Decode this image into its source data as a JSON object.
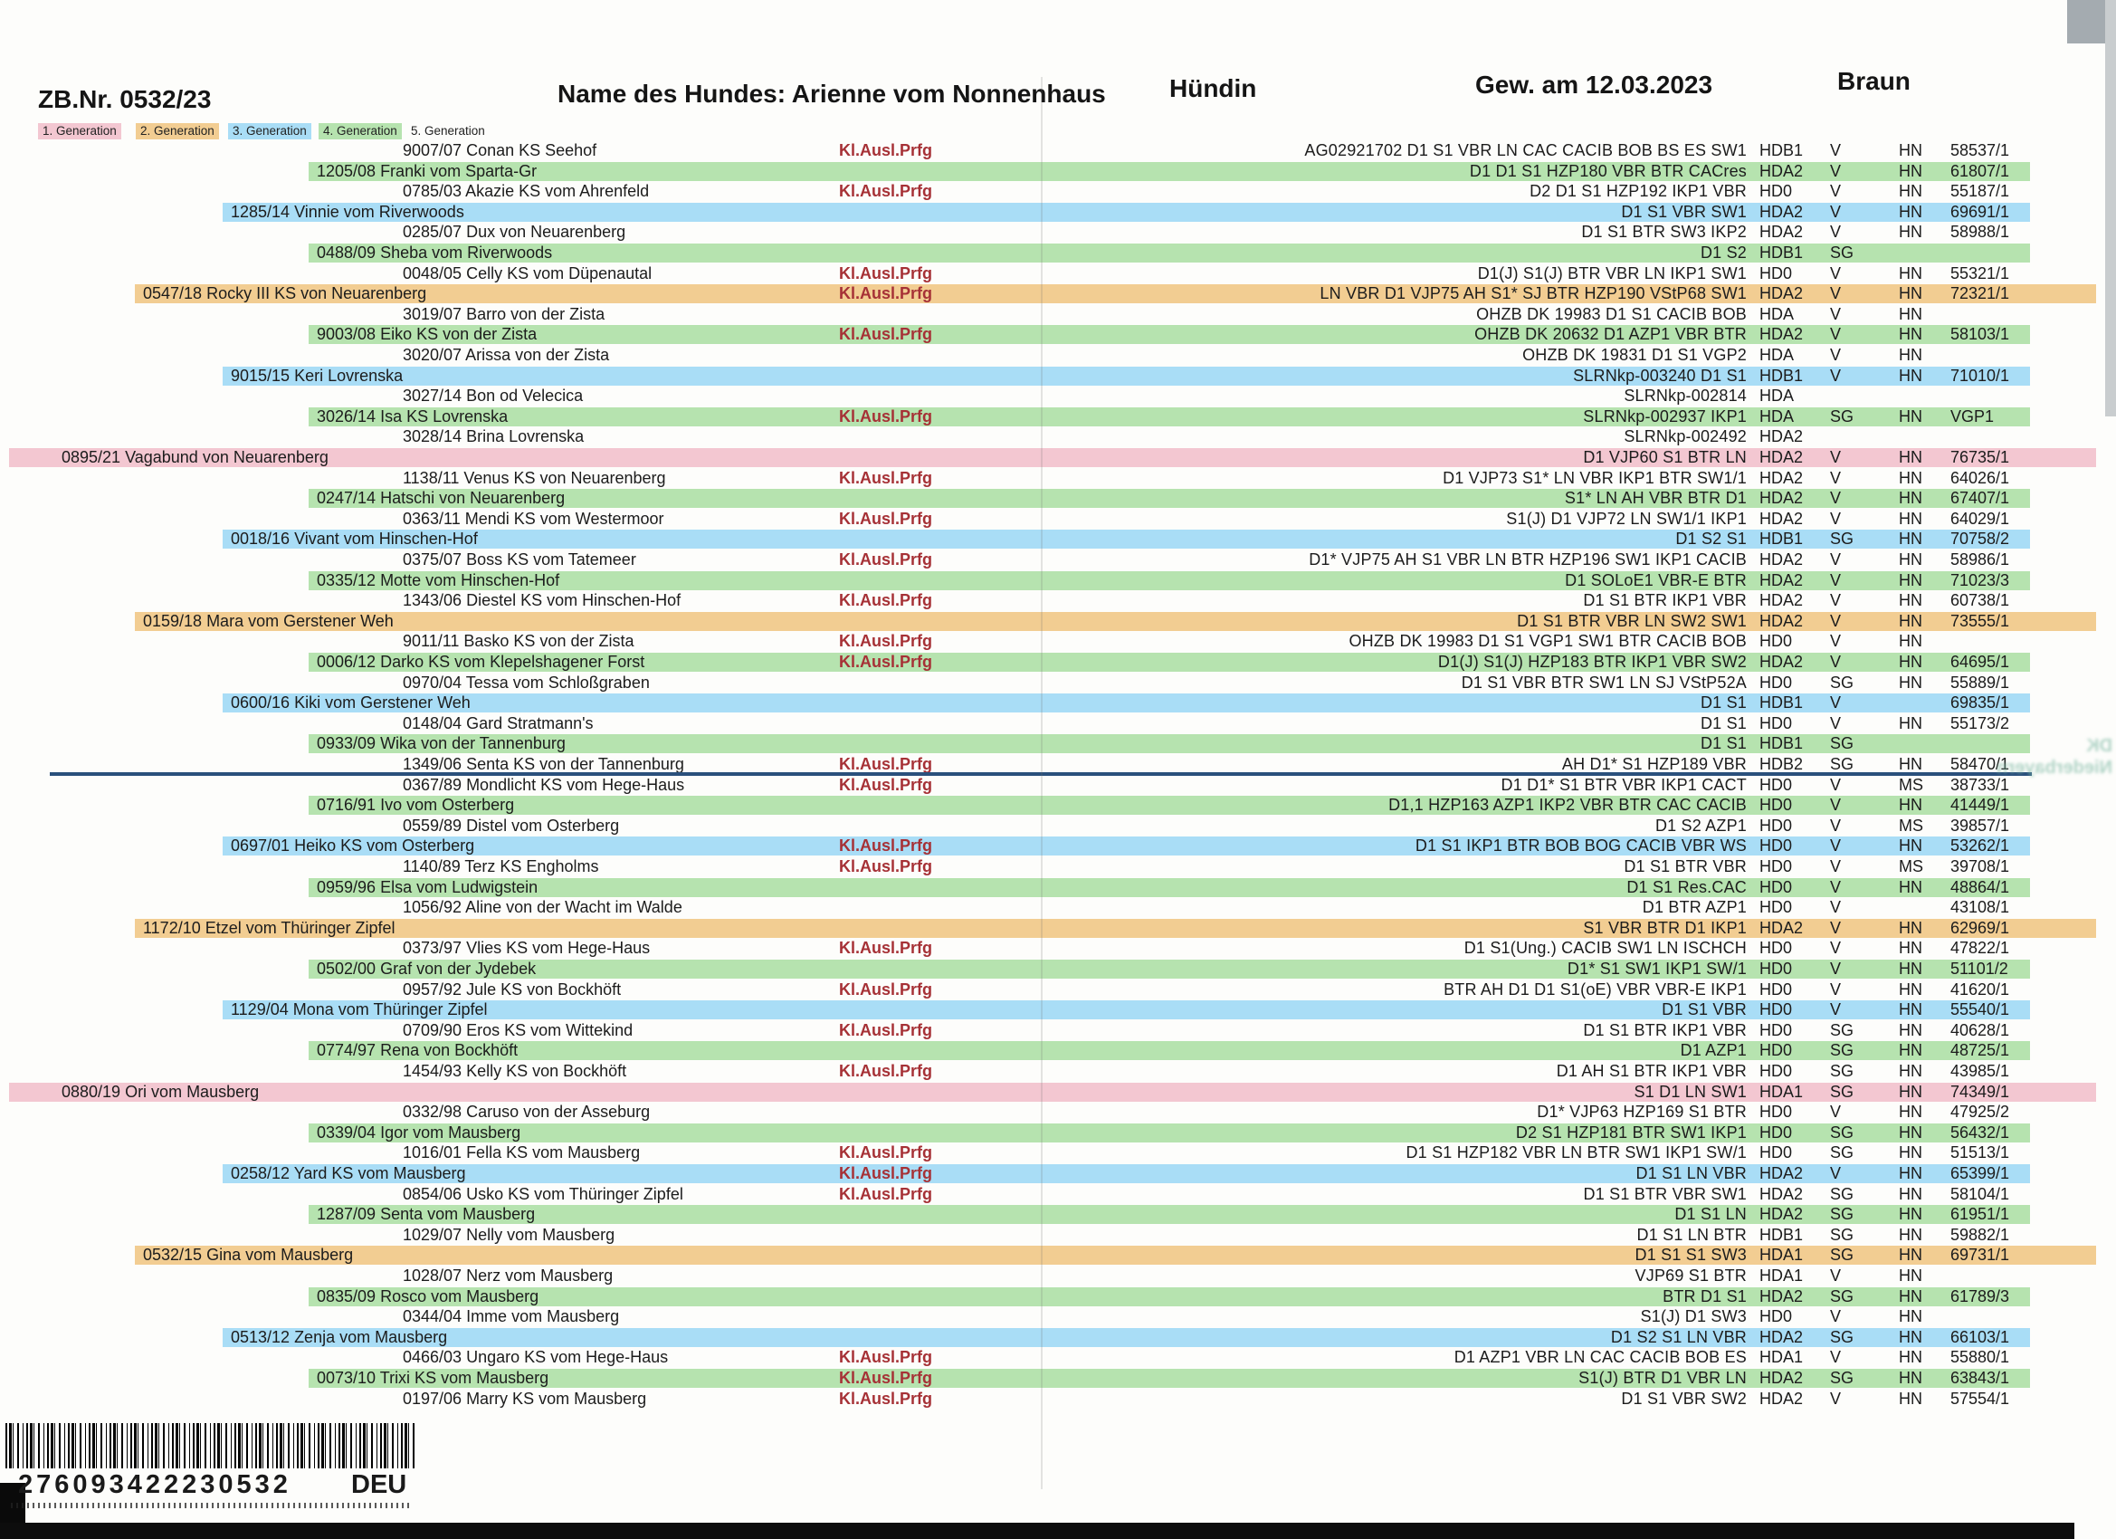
{
  "header": {
    "zb_nr": "ZB.Nr. 0532/23",
    "dog_name": "Name des Hundes: Arienne vom Nonnenhaus",
    "sex": "Hündin",
    "birth": "Gew. am 12.03.2023",
    "coat_color": "Braun"
  },
  "legend": {
    "items": [
      {
        "label": "1. Generation",
        "color": "#f3c7d1"
      },
      {
        "label": "2. Generation",
        "color": "#f2cd92"
      },
      {
        "label": "3. Generation",
        "color": "#a9ddf6"
      },
      {
        "label": "4. Generation",
        "color": "#b6e3af"
      },
      {
        "label": "5. Generation",
        "color": ""
      }
    ]
  },
  "labels": {
    "kl_ausl": "Kl.Ausl.Prfg"
  },
  "generation_colors": {
    "1": "#f3c7d1",
    "2": "#f2cd92",
    "3": "#a9ddf6",
    "4": "#b6e3af"
  },
  "divider_after_row": 31,
  "rows": [
    {
      "gen": 5,
      "name": "9007/07 Conan KS Seehof",
      "kl": true,
      "titles": "AG02921702 D1 S1 VBR LN CAC CACIB BOB BS ES SW1",
      "hd": "HDB1",
      "rating": "V",
      "org": "HN",
      "num": "58537/1"
    },
    {
      "gen": 4,
      "name": "1205/08 Franki vom Sparta-Gr",
      "kl": false,
      "titles": "D1 D1 S1 HZP180 VBR BTR CACres",
      "hd": "HDA2",
      "rating": "V",
      "org": "HN",
      "num": "61807/1"
    },
    {
      "gen": 5,
      "name": "0785/03 Akazie KS vom Ahrenfeld",
      "kl": true,
      "titles": "D2 D1 S1 HZP192 IKP1 VBR",
      "hd": "HD0",
      "rating": "V",
      "org": "HN",
      "num": "55187/1"
    },
    {
      "gen": 3,
      "name": "1285/14 Vinnie vom Riverwoods",
      "kl": false,
      "titles": "D1 S1 VBR SW1",
      "hd": "HDA2",
      "rating": "V",
      "org": "HN",
      "num": "69691/1"
    },
    {
      "gen": 5,
      "name": "0285/07 Dux von Neuarenberg",
      "kl": false,
      "titles": "D1 S1 BTR SW3 IKP2",
      "hd": "HDA2",
      "rating": "V",
      "org": "HN",
      "num": "58988/1"
    },
    {
      "gen": 4,
      "name": "0488/09 Sheba vom Riverwoods",
      "kl": false,
      "titles": "D1 S2",
      "hd": "HDB1",
      "rating": "SG",
      "org": "",
      "num": ""
    },
    {
      "gen": 5,
      "name": "0048/05 Celly KS vom Düpenautal",
      "kl": true,
      "titles": "D1(J) S1(J) BTR VBR LN IKP1 SW1",
      "hd": "HD0",
      "rating": "V",
      "org": "HN",
      "num": "55321/1"
    },
    {
      "gen": 2,
      "name": "0547/18 Rocky III KS von Neuarenberg",
      "kl": true,
      "titles": "LN VBR D1 VJP75 AH S1* SJ BTR HZP190 VStP68 SW1",
      "hd": "HDA2",
      "rating": "V",
      "org": "HN",
      "num": "72321/1"
    },
    {
      "gen": 5,
      "name": "3019/07 Barro von der Zista",
      "kl": false,
      "titles": "OHZB DK 19983 D1 S1 CACIB BOB",
      "hd": "HDA",
      "rating": "V",
      "org": "HN",
      "num": ""
    },
    {
      "gen": 4,
      "name": "9003/08 Eiko KS von der Zista",
      "kl": true,
      "titles": "OHZB DK 20632 D1 AZP1 VBR BTR",
      "hd": "HDA2",
      "rating": "V",
      "org": "HN",
      "num": "58103/1"
    },
    {
      "gen": 5,
      "name": "3020/07 Arissa von der Zista",
      "kl": false,
      "titles": "OHZB DK 19831 D1 S1 VGP2",
      "hd": "HDA",
      "rating": "V",
      "org": "HN",
      "num": ""
    },
    {
      "gen": 3,
      "name": "9015/15 Keri Lovrenska",
      "kl": false,
      "titles": "SLRNkp-003240 D1 S1",
      "hd": "HDB1",
      "rating": "V",
      "org": "HN",
      "num": "71010/1"
    },
    {
      "gen": 5,
      "name": "3027/14 Bon od Velecica",
      "kl": false,
      "titles": "SLRNkp-002814",
      "hd": "HDA",
      "rating": "",
      "org": "",
      "num": ""
    },
    {
      "gen": 4,
      "name": "3026/14 Isa KS Lovrenska",
      "kl": true,
      "titles": "SLRNkp-002937 IKP1",
      "hd": "HDA",
      "rating": "SG",
      "org": "HN",
      "num": "VGP1"
    },
    {
      "gen": 5,
      "name": "3028/14 Brina Lovrenska",
      "kl": false,
      "titles": "SLRNkp-002492",
      "hd": "HDA2",
      "rating": "",
      "org": "",
      "num": ""
    },
    {
      "gen": 1,
      "name": "0895/21 Vagabund von Neuarenberg",
      "kl": false,
      "titles": "D1 VJP60 S1 BTR LN",
      "hd": "HDA2",
      "rating": "V",
      "org": "HN",
      "num": "76735/1"
    },
    {
      "gen": 5,
      "name": "1138/11 Venus KS von Neuarenberg",
      "kl": true,
      "titles": "D1 VJP73 S1* LN VBR IKP1 BTR SW1/1",
      "hd": "HDA2",
      "rating": "V",
      "org": "HN",
      "num": "64026/1"
    },
    {
      "gen": 4,
      "name": "0247/14 Hatschi von Neuarenberg",
      "kl": false,
      "titles": "S1* LN AH VBR BTR D1",
      "hd": "HDA2",
      "rating": "V",
      "org": "HN",
      "num": "67407/1"
    },
    {
      "gen": 5,
      "name": "0363/11 Mendi KS vom Westermoor",
      "kl": true,
      "titles": "S1(J) D1 VJP72 LN SW1/1 IKP1",
      "hd": "HDA2",
      "rating": "V",
      "org": "HN",
      "num": "64029/1"
    },
    {
      "gen": 3,
      "name": "0018/16 Vivant vom Hinschen-Hof",
      "kl": false,
      "titles": "D1 S2 S1",
      "hd": "HDB1",
      "rating": "SG",
      "org": "HN",
      "num": "70758/2"
    },
    {
      "gen": 5,
      "name": "0375/07 Boss KS vom Tatemeer",
      "kl": true,
      "titles": "D1* VJP75 AH S1 VBR LN BTR HZP196 SW1 IKP1 CACIB",
      "hd": "HDA2",
      "rating": "V",
      "org": "HN",
      "num": "58986/1"
    },
    {
      "gen": 4,
      "name": "0335/12 Motte vom Hinschen-Hof",
      "kl": false,
      "titles": "D1 SOLoE1 VBR-E BTR",
      "hd": "HDA2",
      "rating": "V",
      "org": "HN",
      "num": "71023/3"
    },
    {
      "gen": 5,
      "name": "1343/06 Diestel KS vom Hinschen-Hof",
      "kl": true,
      "titles": "D1 S1 BTR IKP1 VBR",
      "hd": "HDA2",
      "rating": "V",
      "org": "HN",
      "num": "60738/1"
    },
    {
      "gen": 2,
      "name": "0159/18 Mara vom Gerstener Weh",
      "kl": false,
      "titles": "D1 S1 BTR VBR LN SW2 SW1",
      "hd": "HDA2",
      "rating": "V",
      "org": "HN",
      "num": "73555/1"
    },
    {
      "gen": 5,
      "name": "9011/11 Basko KS von der Zista",
      "kl": true,
      "titles": "OHZB DK 19983 D1 S1 VGP1 SW1 BTR CACIB BOB",
      "hd": "HD0",
      "rating": "V",
      "org": "HN",
      "num": ""
    },
    {
      "gen": 4,
      "name": "0006/12 Darko KS vom Klepelshagener Forst",
      "kl": true,
      "titles": "D1(J) S1(J) HZP183 BTR IKP1 VBR SW2",
      "hd": "HDA2",
      "rating": "V",
      "org": "HN",
      "num": "64695/1"
    },
    {
      "gen": 5,
      "name": "0970/04 Tessa vom Schloßgraben",
      "kl": false,
      "titles": "D1 S1 VBR BTR SW1 LN SJ VStP52A",
      "hd": "HD0",
      "rating": "SG",
      "org": "HN",
      "num": "55889/1"
    },
    {
      "gen": 3,
      "name": "0600/16 Kiki vom Gerstener Weh",
      "kl": false,
      "titles": "D1 S1",
      "hd": "HDB1",
      "rating": "V",
      "org": "",
      "num": "69835/1"
    },
    {
      "gen": 5,
      "name": "0148/04 Gard Stratmann's",
      "kl": false,
      "titles": "D1 S1",
      "hd": "HD0",
      "rating": "V",
      "org": "HN",
      "num": "55173/2"
    },
    {
      "gen": 4,
      "name": "0933/09 Wika von der Tannenburg",
      "kl": false,
      "titles": "D1 S1",
      "hd": "HDB1",
      "rating": "SG",
      "org": "",
      "num": ""
    },
    {
      "gen": 5,
      "name": "1349/06 Senta KS von der Tannenburg",
      "kl": true,
      "titles": "AH D1* S1 HZP189 VBR",
      "hd": "HDB2",
      "rating": "SG",
      "org": "HN",
      "num": "58470/1"
    },
    {
      "gen": 5,
      "name": "0367/89 Mondlicht KS vom Hege-Haus",
      "kl": true,
      "titles": "D1 D1* S1 BTR VBR IKP1 CACT",
      "hd": "HD0",
      "rating": "V",
      "org": "MS",
      "num": "38733/1"
    },
    {
      "gen": 4,
      "name": "0716/91 Ivo vom Osterberg",
      "kl": false,
      "titles": "D1,1 HZP163 AZP1 IKP2 VBR BTR CAC CACIB",
      "hd": "HD0",
      "rating": "V",
      "org": "HN",
      "num": "41449/1"
    },
    {
      "gen": 5,
      "name": "0559/89 Distel vom Osterberg",
      "kl": false,
      "titles": "D1 S2 AZP1",
      "hd": "HD0",
      "rating": "V",
      "org": "MS",
      "num": "39857/1"
    },
    {
      "gen": 3,
      "name": "0697/01 Heiko KS vom Osterberg",
      "kl": true,
      "titles": "D1 S1 IKP1 BTR BOB BOG CACIB VBR WS",
      "hd": "HD0",
      "rating": "V",
      "org": "HN",
      "num": "53262/1"
    },
    {
      "gen": 5,
      "name": "1140/89 Terz KS Engholms",
      "kl": true,
      "titles": "D1 S1 BTR VBR",
      "hd": "HD0",
      "rating": "V",
      "org": "MS",
      "num": "39708/1"
    },
    {
      "gen": 4,
      "name": "0959/96 Elsa vom Ludwigstein",
      "kl": false,
      "titles": "D1 S1 Res.CAC",
      "hd": "HD0",
      "rating": "V",
      "org": "HN",
      "num": "48864/1"
    },
    {
      "gen": 5,
      "name": "1056/92 Aline von der Wacht im Walde",
      "kl": false,
      "titles": "D1 BTR AZP1",
      "hd": "HD0",
      "rating": "V",
      "org": "",
      "num": "43108/1"
    },
    {
      "gen": 2,
      "name": "1172/10 Etzel vom Thüringer Zipfel",
      "kl": false,
      "titles": "S1 VBR BTR D1 IKP1",
      "hd": "HDA2",
      "rating": "V",
      "org": "HN",
      "num": "62969/1"
    },
    {
      "gen": 5,
      "name": "0373/97 Vlies KS vom Hege-Haus",
      "kl": true,
      "titles": "D1 S1(Ung.) CACIB SW1 LN ISCHCH",
      "hd": "HD0",
      "rating": "V",
      "org": "HN",
      "num": "47822/1"
    },
    {
      "gen": 4,
      "name": "0502/00 Graf von der Jydebek",
      "kl": false,
      "titles": "D1* S1 SW1 IKP1 SW/1",
      "hd": "HD0",
      "rating": "V",
      "org": "HN",
      "num": "51101/2"
    },
    {
      "gen": 5,
      "name": "0957/92 Jule KS von Bockhöft",
      "kl": true,
      "titles": "BTR AH D1 D1 S1(oE) VBR VBR-E IKP1",
      "hd": "HD0",
      "rating": "V",
      "org": "HN",
      "num": "41620/1"
    },
    {
      "gen": 3,
      "name": "1129/04 Mona vom Thüringer Zipfel",
      "kl": false,
      "titles": "D1 S1 VBR",
      "hd": "HD0",
      "rating": "V",
      "org": "HN",
      "num": "55540/1"
    },
    {
      "gen": 5,
      "name": "0709/90 Eros KS vom Wittekind",
      "kl": true,
      "titles": "D1 S1 BTR IKP1 VBR",
      "hd": "HD0",
      "rating": "SG",
      "org": "HN",
      "num": "40628/1"
    },
    {
      "gen": 4,
      "name": "0774/97 Rena von Bockhöft",
      "kl": false,
      "titles": "D1 AZP1",
      "hd": "HD0",
      "rating": "SG",
      "org": "HN",
      "num": "48725/1"
    },
    {
      "gen": 5,
      "name": "1454/93 Kelly KS von Bockhöft",
      "kl": true,
      "titles": "D1 AH S1 BTR IKP1 VBR",
      "hd": "HD0",
      "rating": "SG",
      "org": "HN",
      "num": "43985/1"
    },
    {
      "gen": 1,
      "name": "0880/19 Ori vom Mausberg",
      "kl": false,
      "titles": "S1 D1 LN SW1",
      "hd": "HDA1",
      "rating": "SG",
      "org": "HN",
      "num": "74349/1"
    },
    {
      "gen": 5,
      "name": "0332/98 Caruso von der Asseburg",
      "kl": false,
      "titles": "D1* VJP63 HZP169 S1 BTR",
      "hd": "HD0",
      "rating": "V",
      "org": "HN",
      "num": "47925/2"
    },
    {
      "gen": 4,
      "name": "0339/04 Igor vom Mausberg",
      "kl": false,
      "titles": "D2 S1 HZP181 BTR SW1 IKP1",
      "hd": "HD0",
      "rating": "SG",
      "org": "HN",
      "num": "56432/1"
    },
    {
      "gen": 5,
      "name": "1016/01 Fella KS vom Mausberg",
      "kl": true,
      "titles": "D1 S1 HZP182 VBR LN BTR SW1 IKP1 SW/1",
      "hd": "HD0",
      "rating": "SG",
      "org": "HN",
      "num": "51513/1"
    },
    {
      "gen": 3,
      "name": "0258/12 Yard KS vom Mausberg",
      "kl": true,
      "titles": "D1 S1 LN VBR",
      "hd": "HDA2",
      "rating": "V",
      "org": "HN",
      "num": "65399/1"
    },
    {
      "gen": 5,
      "name": "0854/06 Usko KS vom Thüringer Zipfel",
      "kl": true,
      "titles": "D1 S1 BTR VBR SW1",
      "hd": "HDA2",
      "rating": "SG",
      "org": "HN",
      "num": "58104/1"
    },
    {
      "gen": 4,
      "name": "1287/09 Senta vom Mausberg",
      "kl": false,
      "titles": "D1 S1 LN",
      "hd": "HDA2",
      "rating": "SG",
      "org": "HN",
      "num": "61951/1"
    },
    {
      "gen": 5,
      "name": "1029/07 Nelly vom Mausberg",
      "kl": false,
      "titles": "D1 S1 LN BTR",
      "hd": "HDB1",
      "rating": "SG",
      "org": "HN",
      "num": "59882/1"
    },
    {
      "gen": 2,
      "name": "0532/15 Gina vom Mausberg",
      "kl": false,
      "titles": "D1 S1 S1 SW3",
      "hd": "HDA1",
      "rating": "SG",
      "org": "HN",
      "num": "69731/1"
    },
    {
      "gen": 5,
      "name": "1028/07 Nerz vom Mausberg",
      "kl": false,
      "titles": "VJP69 S1 BTR",
      "hd": "HDA1",
      "rating": "V",
      "org": "HN",
      "num": ""
    },
    {
      "gen": 4,
      "name": "0835/09 Rosco vom Mausberg",
      "kl": false,
      "titles": "BTR D1 S1",
      "hd": "HDA2",
      "rating": "SG",
      "org": "HN",
      "num": "61789/3"
    },
    {
      "gen": 5,
      "name": "0344/04 Imme vom Mausberg",
      "kl": false,
      "titles": "S1(J) D1 SW3",
      "hd": "HD0",
      "rating": "V",
      "org": "HN",
      "num": ""
    },
    {
      "gen": 3,
      "name": "0513/12 Zenja vom Mausberg",
      "kl": false,
      "titles": "D1 S2 S1 LN VBR",
      "hd": "HDA2",
      "rating": "SG",
      "org": "HN",
      "num": "66103/1"
    },
    {
      "gen": 5,
      "name": "0466/03 Ungaro KS vom Hege-Haus",
      "kl": true,
      "titles": "D1 AZP1 VBR LN CAC CACIB BOB ES",
      "hd": "HDA1",
      "rating": "V",
      "org": "HN",
      "num": "55880/1"
    },
    {
      "gen": 4,
      "name": "0073/10 Trixi KS vom Mausberg",
      "kl": true,
      "titles": "S1(J) BTR D1 VBR LN",
      "hd": "HDA2",
      "rating": "SG",
      "org": "HN",
      "num": "63843/1"
    },
    {
      "gen": 5,
      "name": "0197/06 Marry KS vom Mausberg",
      "kl": true,
      "titles": "D1 S1 VBR SW2",
      "hd": "HDA2",
      "rating": "V",
      "org": "HN",
      "num": "57554/1"
    }
  ],
  "barcode": {
    "number": "276093422230532",
    "country": "DEU"
  },
  "ghost": {
    "line1": "DK Niederbayern"
  }
}
